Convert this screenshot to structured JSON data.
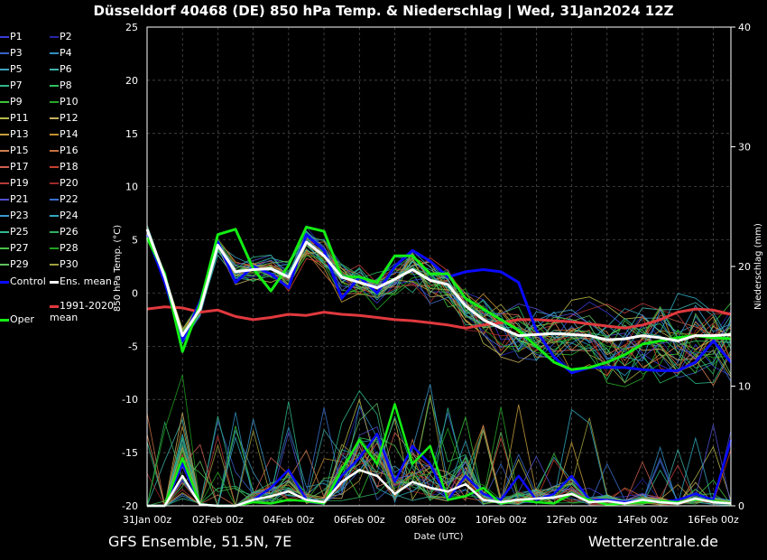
{
  "title": "Düsseldorf 40468 (DE)  850 hPa Temp. & Niederschlag | Wed, 31Jan2024 12Z",
  "footer": {
    "left": "GFS Ensemble, 51.5N, 7E",
    "right": "Wetterzentrale.de"
  },
  "chart_data": {
    "type": "line",
    "xlabel": "Date (UTC)",
    "ylabel": "850 hPa Temp. (°C)",
    "y2label": "Niederschlag (mm)",
    "ylim": [
      -20,
      25
    ],
    "y2lim": [
      0,
      40
    ],
    "yticks": [
      -20,
      -15,
      -10,
      -5,
      0,
      5,
      10,
      15,
      20,
      25
    ],
    "y2ticks": [
      0,
      10,
      20,
      30,
      40
    ],
    "xlim": [
      "2024-01-31 00Z",
      "2024-02-16 12Z"
    ],
    "xticks": [
      "31Jan 00z",
      "02Feb 00z",
      "04Feb 00z",
      "06Feb 00z",
      "08Feb 00z",
      "10Feb 00z",
      "12Feb 00z",
      "14Feb 00z",
      "16Feb 00z"
    ],
    "grid": true,
    "legend_position": "left",
    "members": [
      {
        "name": "P1",
        "color": "#3b3bd6"
      },
      {
        "name": "P2",
        "color": "#2626a8"
      },
      {
        "name": "P3",
        "color": "#3a62c7"
      },
      {
        "name": "P4",
        "color": "#2f8fbf"
      },
      {
        "name": "P5",
        "color": "#3fa0c0"
      },
      {
        "name": "P6",
        "color": "#40b0a8"
      },
      {
        "name": "P7",
        "color": "#2fb889"
      },
      {
        "name": "P8",
        "color": "#2fbf5f"
      },
      {
        "name": "P9",
        "color": "#3bc43b"
      },
      {
        "name": "P10",
        "color": "#28a828"
      },
      {
        "name": "P11",
        "color": "#b8b84a"
      },
      {
        "name": "P12",
        "color": "#c8b060"
      },
      {
        "name": "P13",
        "color": "#c8a040"
      },
      {
        "name": "P14",
        "color": "#c49030"
      },
      {
        "name": "P15",
        "color": "#d08050"
      },
      {
        "name": "P16",
        "color": "#c87040"
      },
      {
        "name": "P17",
        "color": "#d06050"
      },
      {
        "name": "P18",
        "color": "#c84030"
      },
      {
        "name": "P19",
        "color": "#b83a3a"
      },
      {
        "name": "P20",
        "color": "#a02828"
      },
      {
        "name": "P21",
        "color": "#5050d0"
      },
      {
        "name": "P22",
        "color": "#3a70d0"
      },
      {
        "name": "P23",
        "color": "#3a9ad0"
      },
      {
        "name": "P24",
        "color": "#30a8c0"
      },
      {
        "name": "P25",
        "color": "#30b890"
      },
      {
        "name": "P26",
        "color": "#30b060"
      },
      {
        "name": "P27",
        "color": "#48c048"
      },
      {
        "name": "P28",
        "color": "#20a020"
      },
      {
        "name": "P29",
        "color": "#60c060"
      },
      {
        "name": "P30",
        "color": "#a0a040"
      }
    ],
    "control": {
      "name": "Control",
      "color": "#0a0aff"
    },
    "ens_mean": {
      "name": "Ens. mean",
      "color": "#ffffff"
    },
    "clim_mean": {
      "name": "1991-2020 mean",
      "color": "#e0393e"
    },
    "oper": {
      "name": "Oper",
      "color": "#13ee13"
    },
    "times_h": [
      0,
      12,
      24,
      36,
      48,
      60,
      72,
      84,
      96,
      108,
      120,
      132,
      144,
      156,
      168,
      180,
      192,
      204,
      216,
      228,
      240,
      252,
      264,
      276,
      288,
      300,
      312,
      324,
      336,
      348,
      360,
      372,
      384,
      396
    ],
    "series": {
      "ens_mean_temp": [
        6.0,
        1.5,
        -4.0,
        -1.5,
        4.5,
        2.0,
        2.2,
        2.3,
        1.5,
        4.8,
        3.5,
        1.5,
        1.0,
        0.5,
        1.3,
        2.2,
        1.2,
        0.8,
        -1.2,
        -2.5,
        -3.3,
        -4.0,
        -3.9,
        -3.8,
        -3.9,
        -4.0,
        -4.4,
        -4.3,
        -4.0,
        -4.2,
        -4.5,
        -4.0,
        -4.0,
        -3.9
      ],
      "control_temp": [
        5.5,
        1.0,
        -4.5,
        -0.8,
        4.8,
        1.0,
        2.5,
        1.8,
        0.5,
        5.5,
        4.0,
        -0.5,
        1.5,
        0.0,
        2.5,
        4.0,
        3.0,
        1.5,
        2.0,
        2.2,
        2.0,
        1.0,
        -3.5,
        -6.0,
        -7.5,
        -7.0,
        -7.0,
        -7.0,
        -7.2,
        -7.3,
        -7.3,
        -6.5,
        -4.5,
        -6.5
      ],
      "oper_temp": [
        5.2,
        1.8,
        -5.5,
        -1.0,
        5.5,
        6.0,
        2.3,
        0.2,
        2.6,
        6.2,
        5.8,
        1.5,
        1.5,
        1.0,
        3.5,
        3.5,
        1.8,
        1.8,
        -0.5,
        -1.5,
        -2.5,
        -3.5,
        -5.0,
        -6.5,
        -7.2,
        -7.0,
        -6.5,
        -5.8,
        -4.8,
        -4.5,
        -4.2,
        -4.0,
        -4.2,
        -4.3
      ],
      "clim_mean_temp": [
        -1.5,
        -1.3,
        -1.4,
        -1.8,
        -1.6,
        -2.2,
        -2.5,
        -2.3,
        -2.0,
        -2.1,
        -1.8,
        -2.0,
        -2.1,
        -2.3,
        -2.5,
        -2.6,
        -2.8,
        -3.0,
        -3.3,
        -3.0,
        -2.8,
        -2.5,
        -2.5,
        -2.6,
        -2.7,
        -2.9,
        -3.1,
        -3.3,
        -3.0,
        -2.5,
        -1.8,
        -1.5,
        -1.6,
        -2.0
      ],
      "ens_mean_precip": [
        0.0,
        0.0,
        2.5,
        0.1,
        0.0,
        0.0,
        0.5,
        0.8,
        1.2,
        0.5,
        0.3,
        2.0,
        3.0,
        2.5,
        1.0,
        2.0,
        1.5,
        1.2,
        1.8,
        0.5,
        0.3,
        0.5,
        0.6,
        0.7,
        1.0,
        0.3,
        0.4,
        0.2,
        0.5,
        0.3,
        0.2,
        0.6,
        0.3,
        0.2
      ],
      "oper_precip": [
        0.0,
        0.0,
        4.0,
        0.1,
        0.0,
        0.0,
        0.3,
        0.2,
        0.5,
        0.4,
        0.2,
        3.0,
        5.5,
        3.5,
        8.5,
        3.5,
        5.0,
        0.5,
        0.8,
        1.5,
        0.2,
        0.5,
        0.3,
        0.2,
        1.0,
        0.5,
        0.1,
        0.2,
        0.3,
        0.4,
        0.3,
        0.5,
        0.4,
        0.2
      ],
      "control_precip": [
        0.0,
        0.0,
        3.5,
        0.1,
        0.0,
        0.0,
        0.5,
        1.5,
        3.0,
        0.5,
        0.3,
        2.5,
        4.0,
        6.0,
        2.0,
        5.0,
        3.5,
        0.5,
        2.5,
        1.0,
        0.5,
        2.5,
        0.5,
        1.0,
        2.5,
        0.5,
        0.5,
        0.3,
        0.5,
        0.3,
        0.5,
        1.0,
        0.5,
        5.5
      ]
    }
  }
}
